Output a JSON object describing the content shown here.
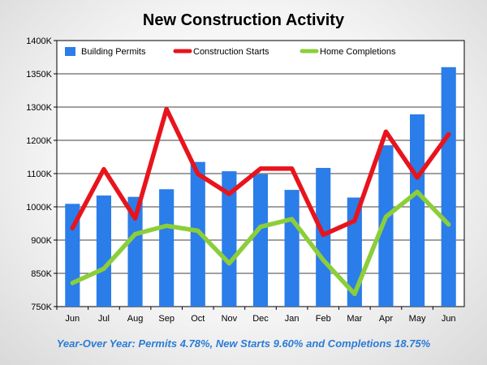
{
  "chart_data": {
    "type": "bar",
    "title": "New Construction Activity",
    "categories": [
      "Jun",
      "Jul",
      "Aug",
      "Sep",
      "Oct",
      "Nov",
      "Dec",
      "Jan",
      "Feb",
      "Mar",
      "Apr",
      "May",
      "Jun"
    ],
    "y_ticks": [
      "750K",
      "850K",
      "900K",
      "1000K",
      "1100K",
      "1200K",
      "1300K",
      "1350K",
      "1400K"
    ],
    "y_tick_values": [
      750,
      850,
      900,
      1000,
      1100,
      1200,
      1300,
      1350,
      1400
    ],
    "ylim": [
      750,
      1400
    ],
    "grid": true,
    "legend_position": "top",
    "series": [
      {
        "name": "Building Permits",
        "type": "bar",
        "color": "#2b7de9",
        "values": [
          1009,
          1034,
          1030,
          1053,
          1135,
          1107,
          1098,
          1051,
          1117,
          1028,
          1185,
          1278,
          1360
        ]
      },
      {
        "name": "Construction Starts",
        "type": "line",
        "color": "#e8141c",
        "values": [
          936,
          1113,
          965,
          1294,
          1099,
          1039,
          1115,
          1115,
          916,
          958,
          1226,
          1088,
          1218
        ]
      },
      {
        "name": "Home Completions",
        "type": "line",
        "color": "#8cce3a",
        "values": [
          821,
          857,
          918,
          943,
          928,
          865,
          940,
          963,
          870,
          788,
          970,
          1045,
          947
        ]
      }
    ],
    "footer": "Year-Over Year: Permits 4.78%, New Starts 9.60% and Completions 18.75%"
  }
}
